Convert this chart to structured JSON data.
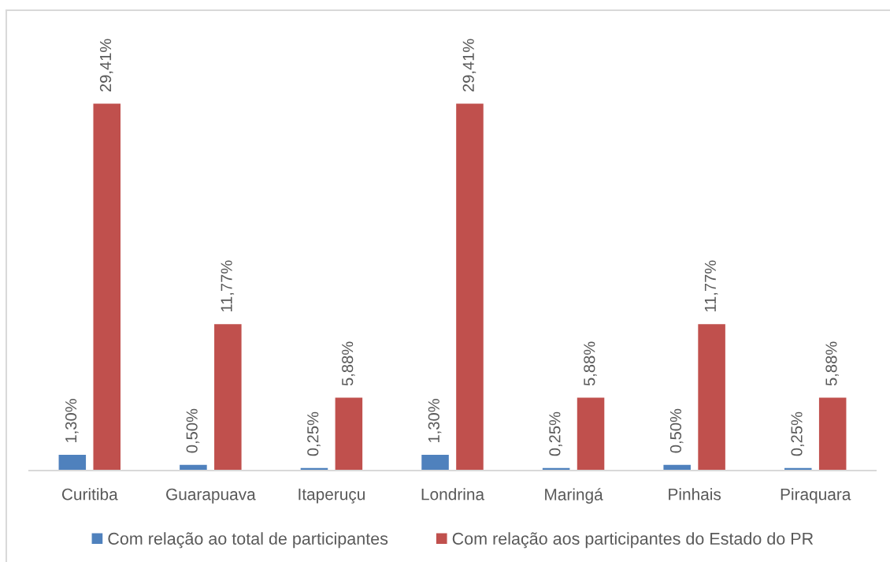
{
  "chart_data": {
    "type": "bar",
    "categories": [
      "Curitiba",
      "Guarapuava",
      "Itaperuçu",
      "Londrina",
      "Maringá",
      "Pinhais",
      "Piraquara"
    ],
    "series": [
      {
        "name": "Com relação ao total de participantes",
        "color": "#4f81bd",
        "values": [
          1.3,
          0.5,
          0.25,
          1.3,
          0.25,
          0.5,
          0.25
        ],
        "value_labels": [
          "1,30%",
          "0,50%",
          "0,25%",
          "1,30%",
          "0,25%",
          "0,50%",
          "0,25%"
        ]
      },
      {
        "name": "Com relação aos participantes do Estado do PR",
        "color": "#c0504d",
        "values": [
          29.41,
          11.77,
          5.88,
          29.41,
          5.88,
          11.77,
          5.88
        ],
        "value_labels": [
          "29,41%",
          "11,77%",
          "5,88%",
          "29,41%",
          "5,88%",
          "11,77%",
          "5,88%"
        ]
      }
    ],
    "legend": "bottom",
    "tick_labels": "x"
  }
}
